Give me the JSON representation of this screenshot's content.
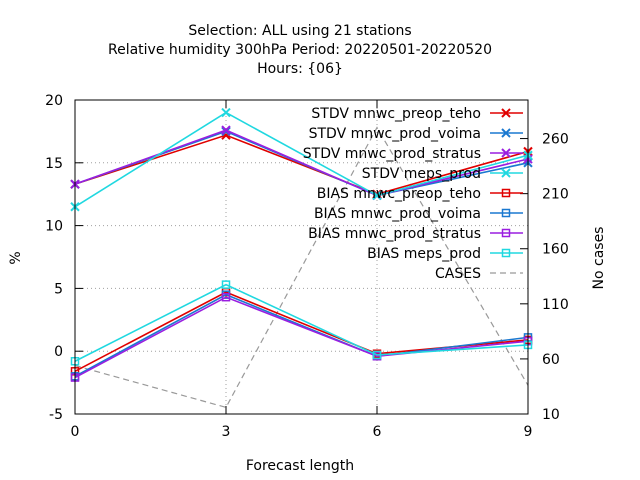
{
  "chart_data": {
    "type": "line",
    "title_lines": [
      "Selection: ALL using    21 stations",
      "Relative humidity 300hPa   Period: 20220501-20220520",
      "Hours: {06}"
    ],
    "xlabel": "Forecast length",
    "ylabel": "%",
    "y2label": "No cases",
    "x": [
      0,
      3,
      6,
      9
    ],
    "xlim": [
      0,
      9
    ],
    "ylim": [
      -5,
      20
    ],
    "y2lim": [
      10,
      295
    ],
    "xticks": [
      "0",
      "3",
      "6",
      "9"
    ],
    "yticks": [
      "-5",
      "0",
      "5",
      "10",
      "15",
      "20"
    ],
    "y2ticks": [
      "10",
      "60",
      "110",
      "160",
      "210",
      "260"
    ],
    "grid": true,
    "legend_position": "top-right",
    "series": [
      {
        "name": "STDV mnwc_preop_teho",
        "color": "#e00000",
        "marker": "x",
        "values": [
          13.3,
          17.2,
          12.5,
          15.9
        ]
      },
      {
        "name": "STDV mnwc_prod_voima",
        "color": "#1a78d0",
        "marker": "x",
        "values": [
          13.3,
          17.5,
          12.4,
          15.0
        ]
      },
      {
        "name": "STDV mnwc_prod_stratus",
        "color": "#9a1ee0",
        "marker": "x",
        "values": [
          13.3,
          17.6,
          12.4,
          15.3
        ]
      },
      {
        "name": "STDV meps_prod",
        "color": "#20d8e0",
        "marker": "x",
        "values": [
          11.5,
          19.0,
          12.4,
          15.6
        ]
      },
      {
        "name": "BIAS mnwc_preop_teho",
        "color": "#e00000",
        "marker": "square",
        "values": [
          -1.6,
          4.7,
          -0.2,
          0.9
        ]
      },
      {
        "name": "BIAS mnwc_prod_voima",
        "color": "#1a78d0",
        "marker": "square",
        "values": [
          -2.0,
          4.5,
          -0.4,
          1.1
        ]
      },
      {
        "name": "BIAS mnwc_prod_stratus",
        "color": "#9a1ee0",
        "marker": "square",
        "values": [
          -2.1,
          4.3,
          -0.4,
          0.8
        ]
      },
      {
        "name": "BIAS meps_prod",
        "color": "#20d8e0",
        "marker": "square",
        "values": [
          -0.8,
          5.3,
          -0.3,
          0.5
        ]
      }
    ],
    "cases": {
      "name": "CASES",
      "color": "#999999",
      "axis": "y2",
      "values": [
        54,
        16,
        270,
        36
      ]
    }
  }
}
